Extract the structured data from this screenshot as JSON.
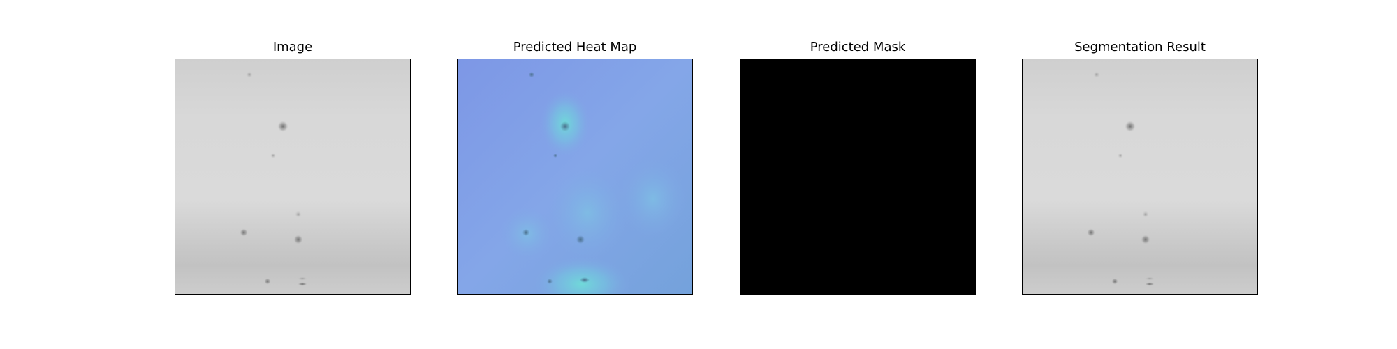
{
  "figure": {
    "panels": [
      {
        "title": "Image"
      },
      {
        "title": "Predicted Heat Map"
      },
      {
        "title": "Predicted Mask"
      },
      {
        "title": "Segmentation Result"
      }
    ]
  },
  "colors": {
    "background": "#ffffff",
    "frame": "#000000",
    "grayscale_surface": "#d6d6d6",
    "heatmap_cold": "#7f9be8",
    "heatmap_warm": "#6ed8d8",
    "mask_fill": "#000000"
  }
}
